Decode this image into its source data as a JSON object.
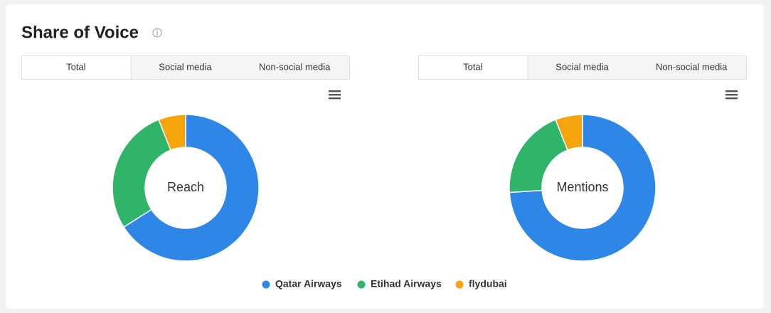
{
  "header": {
    "title": "Share of Voice"
  },
  "panels": [
    {
      "tabs": [
        "Total",
        "Social media",
        "Non-social media"
      ],
      "active_tab": 0
    },
    {
      "tabs": [
        "Total",
        "Social media",
        "Non-social media"
      ],
      "active_tab": 0
    }
  ],
  "legend": {
    "items": [
      {
        "name": "Qatar Airways",
        "color": "#2e86e6"
      },
      {
        "name": "Etihad Airways",
        "color": "#2fb46a"
      },
      {
        "name": "flydubai",
        "color": "#f5a40c"
      }
    ]
  },
  "chart_data": [
    {
      "type": "donut",
      "center_label": "Reach",
      "values": [
        66,
        28,
        6
      ]
    },
    {
      "type": "donut",
      "center_label": "Mentions",
      "values": [
        74,
        20,
        6
      ]
    }
  ]
}
